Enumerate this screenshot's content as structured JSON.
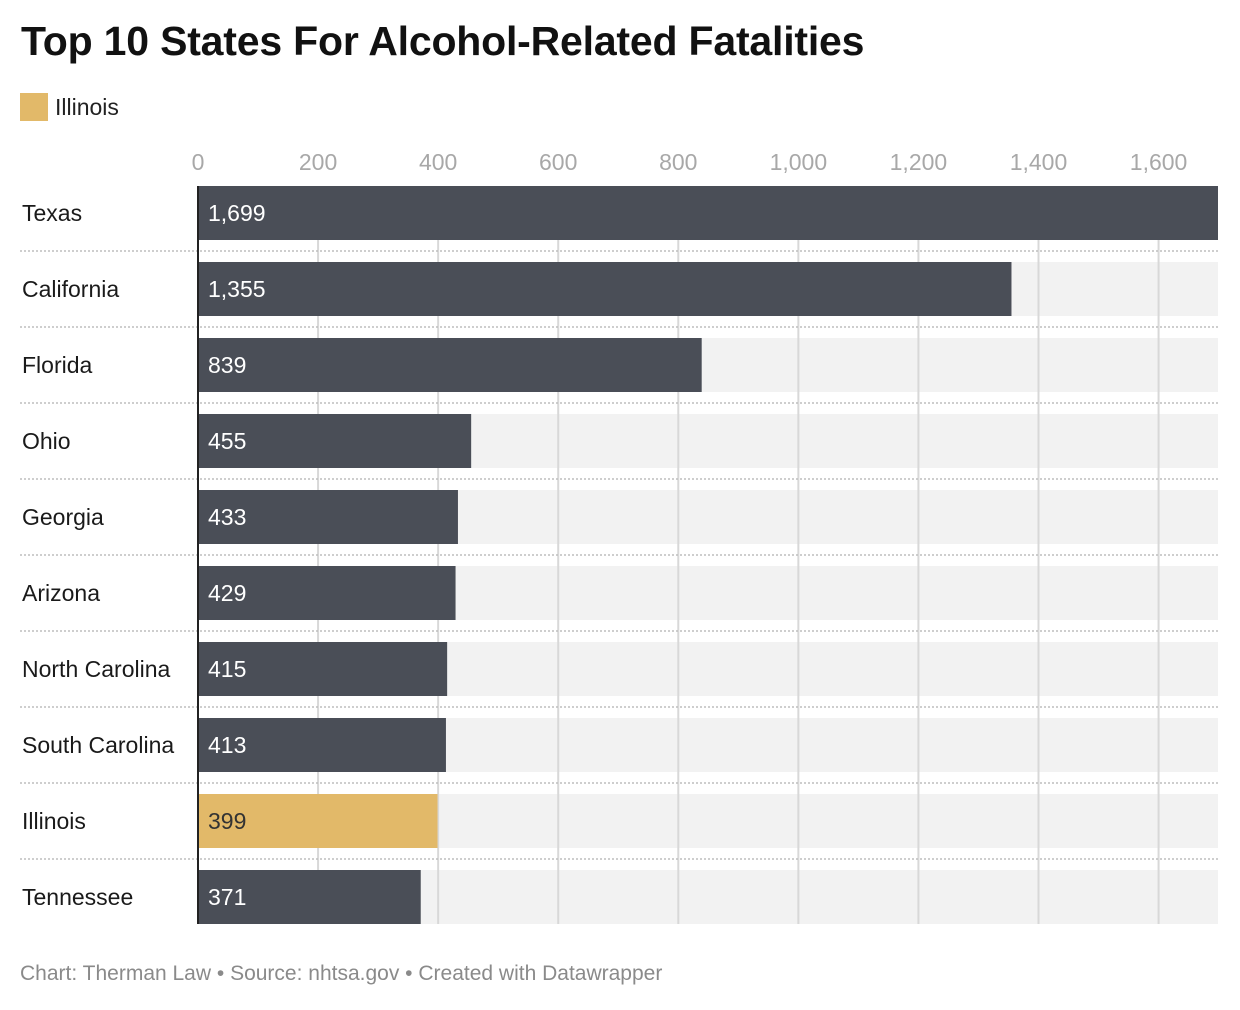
{
  "title": "Top 10 States For Alcohol-Related Fatalities",
  "legend": {
    "label": "Illinois",
    "color": "#e2b969"
  },
  "footer": {
    "chart_credit": "Chart: Therman Law",
    "separator": " • ",
    "source": "Source: nhtsa.gov",
    "tool": "Created with Datawrapper"
  },
  "colors": {
    "bar": "#4a4e57",
    "highlight": "#e2b969",
    "track": "#f2f2f2",
    "grid": "#d8d8d8",
    "tick_label": "#a8a8a8",
    "value_label_on_dark": "#ffffff",
    "value_label_on_highlight": "#333333"
  },
  "chart_data": {
    "type": "bar",
    "orientation": "horizontal",
    "categories": [
      "Texas",
      "California",
      "Florida",
      "Ohio",
      "Georgia",
      "Arizona",
      "North Carolina",
      "South Carolina",
      "Illinois",
      "Tennessee"
    ],
    "values": [
      1699,
      1355,
      839,
      455,
      433,
      429,
      415,
      413,
      399,
      371
    ],
    "value_labels": [
      "1,699",
      "1,355",
      "839",
      "455",
      "433",
      "429",
      "415",
      "413",
      "399",
      "371"
    ],
    "highlighted": [
      "Illinois"
    ],
    "x_ticks": [
      0,
      200,
      400,
      600,
      800,
      1000,
      1200,
      1400,
      1600
    ],
    "x_tick_labels": [
      "0",
      "200",
      "400",
      "600",
      "800",
      "1,000",
      "1,200",
      "1,400",
      "1,600"
    ],
    "xlim": [
      0,
      1699
    ],
    "xlabel": "",
    "ylabel": "",
    "grid": true,
    "axis_position": "top",
    "legend_position": "top-left"
  }
}
